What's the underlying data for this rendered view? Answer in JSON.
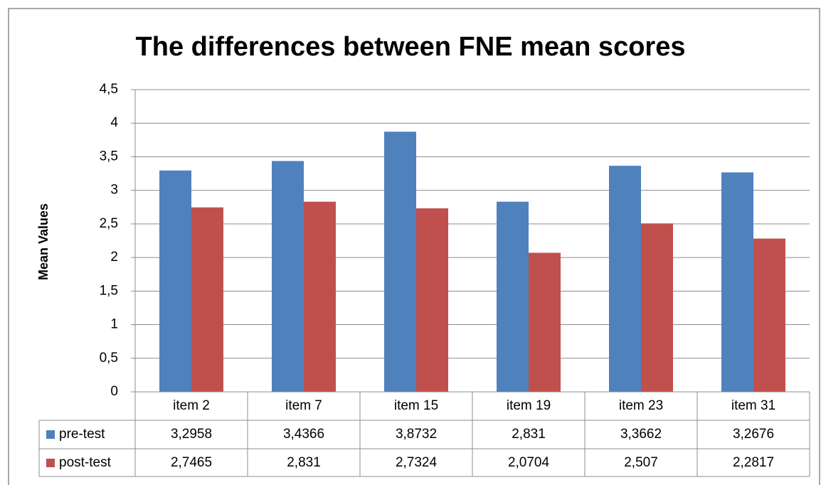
{
  "chart_data": {
    "type": "bar",
    "title": "The differences between FNE mean scores",
    "y_label": "Mean Values",
    "categories": [
      "item 2",
      "item 7",
      "item 15",
      "item 19",
      "item 23",
      "item 31"
    ],
    "series": [
      {
        "name": "pre-test",
        "color": "#4f81bd",
        "values": [
          3.2958,
          3.4366,
          3.8732,
          2.831,
          3.3662,
          3.2676
        ],
        "value_labels": [
          "3,2958",
          "3,4366",
          "3,8732",
          "2,831",
          "3,3662",
          "3,2676"
        ]
      },
      {
        "name": "post-test",
        "color": "#c0504d",
        "values": [
          2.7465,
          2.831,
          2.7324,
          2.0704,
          2.507,
          2.2817
        ],
        "value_labels": [
          "2,7465",
          "2,831",
          "2,7324",
          "2,0704",
          "2,507",
          "2,2817"
        ]
      }
    ],
    "ylim": [
      0,
      4.5
    ],
    "yticks": [
      0,
      {
        "value": 0.5,
        "label": "0,5"
      },
      1,
      {
        "value": 1.5,
        "label": "1,5"
      },
      2,
      {
        "value": 2.5,
        "label": "2,5"
      },
      3,
      {
        "value": 3.5,
        "label": "3,5"
      },
      4,
      {
        "value": 4.5,
        "label": "4,5"
      }
    ],
    "grid": true
  }
}
